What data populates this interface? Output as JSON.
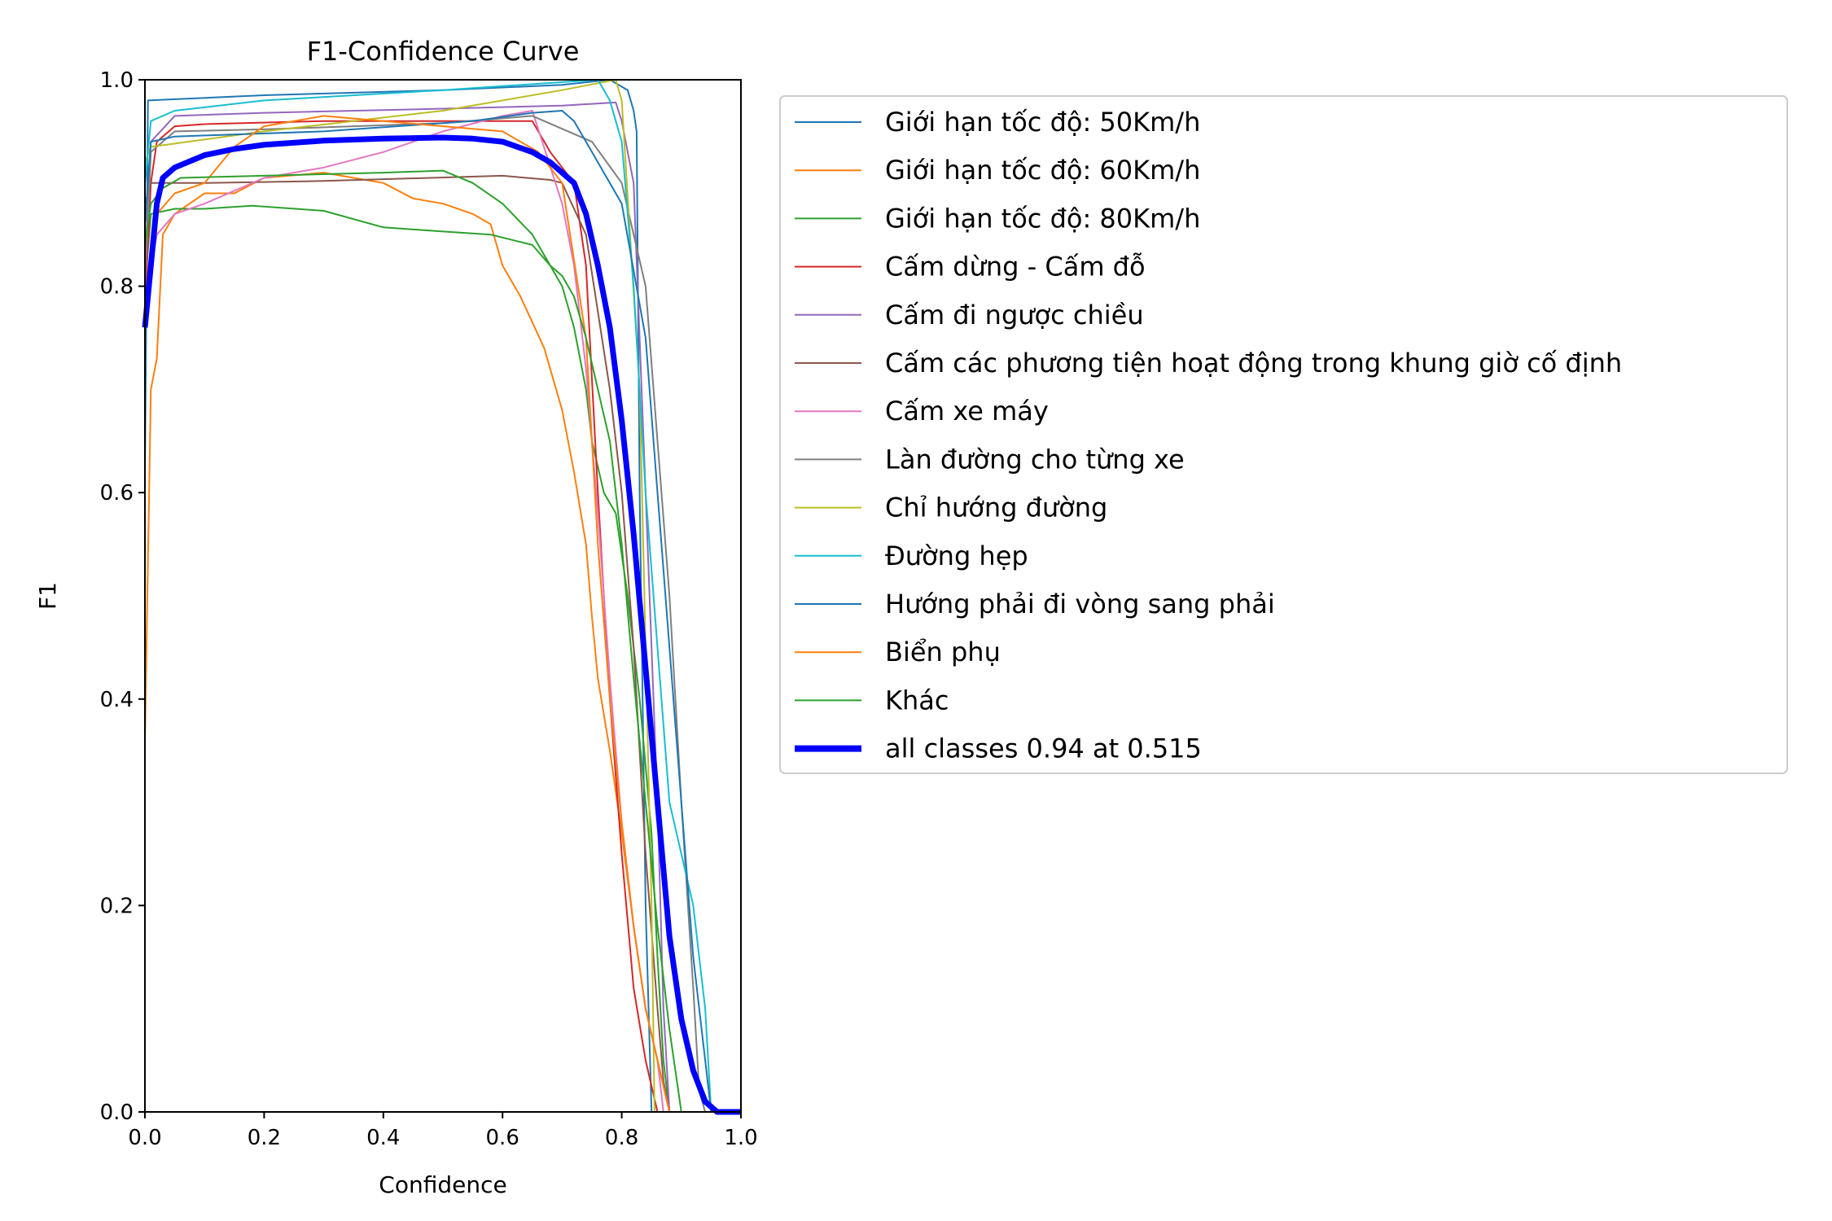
{
  "chart_data": {
    "type": "line",
    "title": "F1-Confidence Curve",
    "xlabel": "Confidence",
    "ylabel": "F1",
    "xlim": [
      0,
      1
    ],
    "ylim": [
      0,
      1
    ],
    "grid": false,
    "legend_placement": "outside-right",
    "xticks": [
      "0.0",
      "0.2",
      "0.4",
      "0.6",
      "0.8",
      "1.0"
    ],
    "yticks": [
      "0.0",
      "0.2",
      "0.4",
      "0.6",
      "0.8",
      "1.0"
    ],
    "series": [
      {
        "name": "Giới hạn tốc độ: 50Km/h",
        "color": "#1f77b4",
        "width": 1,
        "points": [
          [
            0,
            0.62
          ],
          [
            0.005,
            0.98
          ],
          [
            0.2,
            0.985
          ],
          [
            0.5,
            0.99
          ],
          [
            0.7,
            0.995
          ],
          [
            0.78,
            1.0
          ],
          [
            0.81,
            0.99
          ],
          [
            0.82,
            0.97
          ],
          [
            0.825,
            0.95
          ],
          [
            0.83,
            0.6
          ],
          [
            0.84,
            0.2
          ],
          [
            0.85,
            0.0
          ]
        ]
      },
      {
        "name": "Giới hạn tốc độ: 60Km/h",
        "color": "#ff7f0e",
        "width": 1,
        "points": [
          [
            0,
            0.36
          ],
          [
            0.01,
            0.7
          ],
          [
            0.02,
            0.73
          ],
          [
            0.03,
            0.85
          ],
          [
            0.05,
            0.87
          ],
          [
            0.1,
            0.89
          ],
          [
            0.15,
            0.89
          ],
          [
            0.2,
            0.905
          ],
          [
            0.3,
            0.91
          ],
          [
            0.4,
            0.9
          ],
          [
            0.45,
            0.885
          ],
          [
            0.5,
            0.88
          ],
          [
            0.55,
            0.87
          ],
          [
            0.58,
            0.86
          ],
          [
            0.6,
            0.82
          ],
          [
            0.63,
            0.79
          ],
          [
            0.67,
            0.74
          ],
          [
            0.7,
            0.68
          ],
          [
            0.72,
            0.62
          ],
          [
            0.74,
            0.55
          ],
          [
            0.75,
            0.48
          ],
          [
            0.76,
            0.42
          ],
          [
            0.78,
            0.35
          ],
          [
            0.8,
            0.27
          ],
          [
            0.82,
            0.18
          ],
          [
            0.84,
            0.1
          ],
          [
            0.86,
            0.05
          ],
          [
            0.88,
            0.0
          ]
        ]
      },
      {
        "name": "Giới hạn tốc độ: 80Km/h",
        "color": "#2ca02c",
        "width": 1,
        "points": [
          [
            0,
            0.8
          ],
          [
            0.01,
            0.87
          ],
          [
            0.05,
            0.875
          ],
          [
            0.1,
            0.875
          ],
          [
            0.18,
            0.878
          ],
          [
            0.3,
            0.873
          ],
          [
            0.4,
            0.857
          ],
          [
            0.5,
            0.853
          ],
          [
            0.58,
            0.85
          ],
          [
            0.65,
            0.84
          ],
          [
            0.68,
            0.82
          ],
          [
            0.7,
            0.8
          ],
          [
            0.72,
            0.76
          ],
          [
            0.74,
            0.7
          ],
          [
            0.75,
            0.65
          ],
          [
            0.77,
            0.6
          ],
          [
            0.79,
            0.58
          ],
          [
            0.81,
            0.5
          ],
          [
            0.83,
            0.4
          ],
          [
            0.85,
            0.27
          ],
          [
            0.86,
            0.15
          ],
          [
            0.87,
            0.05
          ],
          [
            0.88,
            0.0
          ]
        ]
      },
      {
        "name": "Cấm dừng - Cấm đỗ",
        "color": "#d62728",
        "width": 1,
        "points": [
          [
            0,
            0.78
          ],
          [
            0.01,
            0.9
          ],
          [
            0.02,
            0.94
          ],
          [
            0.05,
            0.955
          ],
          [
            0.1,
            0.957
          ],
          [
            0.3,
            0.96
          ],
          [
            0.5,
            0.96
          ],
          [
            0.6,
            0.96
          ],
          [
            0.65,
            0.96
          ],
          [
            0.68,
            0.93
          ],
          [
            0.72,
            0.9
          ],
          [
            0.74,
            0.82
          ],
          [
            0.76,
            0.6
          ],
          [
            0.78,
            0.4
          ],
          [
            0.8,
            0.25
          ],
          [
            0.82,
            0.12
          ],
          [
            0.84,
            0.05
          ],
          [
            0.86,
            0.0
          ]
        ]
      },
      {
        "name": "Cấm đi ngược chiều",
        "color": "#9467bd",
        "width": 1,
        "points": [
          [
            0,
            0.82
          ],
          [
            0.01,
            0.94
          ],
          [
            0.05,
            0.965
          ],
          [
            0.2,
            0.968
          ],
          [
            0.5,
            0.972
          ],
          [
            0.7,
            0.975
          ],
          [
            0.79,
            0.978
          ],
          [
            0.8,
            0.96
          ],
          [
            0.82,
            0.9
          ],
          [
            0.84,
            0.6
          ],
          [
            0.86,
            0.3
          ],
          [
            0.87,
            0.1
          ],
          [
            0.88,
            0.0
          ]
        ]
      },
      {
        "name": "Cấm các phương tiện hoạt động trong khung giờ cố định",
        "color": "#8c564b",
        "width": 1,
        "points": [
          [
            0,
            0.88
          ],
          [
            0.01,
            0.9
          ],
          [
            0.1,
            0.9
          ],
          [
            0.3,
            0.902
          ],
          [
            0.6,
            0.907
          ],
          [
            0.68,
            0.903
          ],
          [
            0.7,
            0.9
          ],
          [
            0.74,
            0.85
          ],
          [
            0.78,
            0.7
          ],
          [
            0.8,
            0.6
          ],
          [
            0.82,
            0.45
          ],
          [
            0.84,
            0.25
          ],
          [
            0.86,
            0.1
          ],
          [
            0.87,
            0.03
          ],
          [
            0.88,
            0.0
          ]
        ]
      },
      {
        "name": "Cấm xe máy",
        "color": "#e377c2",
        "width": 1,
        "points": [
          [
            0,
            0.78
          ],
          [
            0.02,
            0.85
          ],
          [
            0.05,
            0.87
          ],
          [
            0.1,
            0.88
          ],
          [
            0.2,
            0.905
          ],
          [
            0.3,
            0.915
          ],
          [
            0.4,
            0.93
          ],
          [
            0.5,
            0.95
          ],
          [
            0.6,
            0.965
          ],
          [
            0.65,
            0.97
          ],
          [
            0.7,
            0.88
          ],
          [
            0.72,
            0.82
          ],
          [
            0.74,
            0.72
          ],
          [
            0.76,
            0.58
          ],
          [
            0.78,
            0.42
          ],
          [
            0.8,
            0.28
          ],
          [
            0.82,
            0.18
          ],
          [
            0.84,
            0.1
          ],
          [
            0.86,
            0.05
          ],
          [
            0.87,
            0.0
          ]
        ]
      },
      {
        "name": "Làn đường cho từng xe",
        "color": "#7f7f7f",
        "width": 1,
        "points": [
          [
            0,
            0.8
          ],
          [
            0.01,
            0.93
          ],
          [
            0.05,
            0.95
          ],
          [
            0.2,
            0.952
          ],
          [
            0.5,
            0.958
          ],
          [
            0.65,
            0.965
          ],
          [
            0.75,
            0.94
          ],
          [
            0.8,
            0.9
          ],
          [
            0.84,
            0.8
          ],
          [
            0.86,
            0.65
          ],
          [
            0.88,
            0.5
          ],
          [
            0.9,
            0.3
          ],
          [
            0.92,
            0.12
          ],
          [
            0.93,
            0.02
          ],
          [
            0.94,
            0.0
          ]
        ]
      },
      {
        "name": "Chỉ hướng đường",
        "color": "#bcbd22",
        "width": 1,
        "points": [
          [
            0,
            0.92
          ],
          [
            0.01,
            0.935
          ],
          [
            0.2,
            0.95
          ],
          [
            0.5,
            0.97
          ],
          [
            0.7,
            0.99
          ],
          [
            0.79,
            1.0
          ],
          [
            0.8,
            0.98
          ],
          [
            0.83,
            0.7
          ],
          [
            0.84,
            0.45
          ],
          [
            0.85,
            0.2
          ],
          [
            0.855,
            0.0
          ]
        ]
      },
      {
        "name": "Đường hẹp",
        "color": "#17becf",
        "width": 1,
        "points": [
          [
            0,
            0.9
          ],
          [
            0.01,
            0.96
          ],
          [
            0.05,
            0.97
          ],
          [
            0.2,
            0.98
          ],
          [
            0.5,
            0.99
          ],
          [
            0.76,
            1.0
          ],
          [
            0.78,
            0.98
          ],
          [
            0.8,
            0.94
          ],
          [
            0.82,
            0.8
          ],
          [
            0.84,
            0.6
          ],
          [
            0.86,
            0.45
          ],
          [
            0.88,
            0.3
          ],
          [
            0.9,
            0.25
          ],
          [
            0.92,
            0.2
          ],
          [
            0.94,
            0.1
          ],
          [
            0.95,
            0.0
          ]
        ]
      },
      {
        "name": "Hướng phải đi vòng sang phải",
        "color": "#1f77b4",
        "width": 1,
        "points": [
          [
            0,
            0.86
          ],
          [
            0.01,
            0.94
          ],
          [
            0.05,
            0.945
          ],
          [
            0.3,
            0.95
          ],
          [
            0.55,
            0.96
          ],
          [
            0.65,
            0.968
          ],
          [
            0.7,
            0.97
          ],
          [
            0.72,
            0.96
          ],
          [
            0.76,
            0.92
          ],
          [
            0.8,
            0.88
          ],
          [
            0.84,
            0.75
          ],
          [
            0.86,
            0.6
          ],
          [
            0.88,
            0.45
          ],
          [
            0.9,
            0.3
          ],
          [
            0.92,
            0.15
          ],
          [
            0.94,
            0.05
          ],
          [
            0.95,
            0.0
          ]
        ]
      },
      {
        "name": "Biển phụ",
        "color": "#ff7f0e",
        "width": 1,
        "points": [
          [
            0,
            0.77
          ],
          [
            0.02,
            0.87
          ],
          [
            0.05,
            0.89
          ],
          [
            0.1,
            0.9
          ],
          [
            0.15,
            0.935
          ],
          [
            0.2,
            0.955
          ],
          [
            0.3,
            0.965
          ],
          [
            0.4,
            0.96
          ],
          [
            0.5,
            0.955
          ],
          [
            0.6,
            0.95
          ],
          [
            0.66,
            0.93
          ],
          [
            0.7,
            0.9
          ],
          [
            0.74,
            0.75
          ],
          [
            0.76,
            0.55
          ],
          [
            0.78,
            0.4
          ],
          [
            0.8,
            0.28
          ],
          [
            0.82,
            0.18
          ],
          [
            0.84,
            0.1
          ],
          [
            0.86,
            0.05
          ],
          [
            0.88,
            0.0
          ]
        ]
      },
      {
        "name": "Khác",
        "color": "#2ca02c",
        "width": 1,
        "points": [
          [
            0,
            0.84
          ],
          [
            0.01,
            0.88
          ],
          [
            0.03,
            0.895
          ],
          [
            0.06,
            0.905
          ],
          [
            0.2,
            0.907
          ],
          [
            0.4,
            0.91
          ],
          [
            0.5,
            0.912
          ],
          [
            0.55,
            0.9
          ],
          [
            0.6,
            0.88
          ],
          [
            0.65,
            0.85
          ],
          [
            0.68,
            0.82
          ],
          [
            0.7,
            0.81
          ],
          [
            0.72,
            0.79
          ],
          [
            0.74,
            0.75
          ],
          [
            0.76,
            0.7
          ],
          [
            0.78,
            0.65
          ],
          [
            0.8,
            0.55
          ],
          [
            0.82,
            0.42
          ],
          [
            0.84,
            0.3
          ],
          [
            0.86,
            0.18
          ],
          [
            0.88,
            0.08
          ],
          [
            0.9,
            0.0
          ]
        ]
      },
      {
        "name": "all classes 0.94 at 0.515",
        "color": "#0000ff",
        "width": 4,
        "points": [
          [
            0,
            0.76
          ],
          [
            0.01,
            0.82
          ],
          [
            0.02,
            0.88
          ],
          [
            0.03,
            0.905
          ],
          [
            0.05,
            0.915
          ],
          [
            0.1,
            0.927
          ],
          [
            0.15,
            0.933
          ],
          [
            0.2,
            0.937
          ],
          [
            0.3,
            0.941
          ],
          [
            0.4,
            0.943
          ],
          [
            0.5,
            0.944
          ],
          [
            0.55,
            0.943
          ],
          [
            0.6,
            0.94
          ],
          [
            0.65,
            0.93
          ],
          [
            0.68,
            0.92
          ],
          [
            0.72,
            0.9
          ],
          [
            0.74,
            0.87
          ],
          [
            0.76,
            0.82
          ],
          [
            0.78,
            0.76
          ],
          [
            0.8,
            0.67
          ],
          [
            0.82,
            0.56
          ],
          [
            0.84,
            0.43
          ],
          [
            0.86,
            0.3
          ],
          [
            0.88,
            0.17
          ],
          [
            0.9,
            0.09
          ],
          [
            0.92,
            0.04
          ],
          [
            0.94,
            0.01
          ],
          [
            0.96,
            0.0
          ],
          [
            1.0,
            0.0
          ]
        ]
      }
    ]
  }
}
